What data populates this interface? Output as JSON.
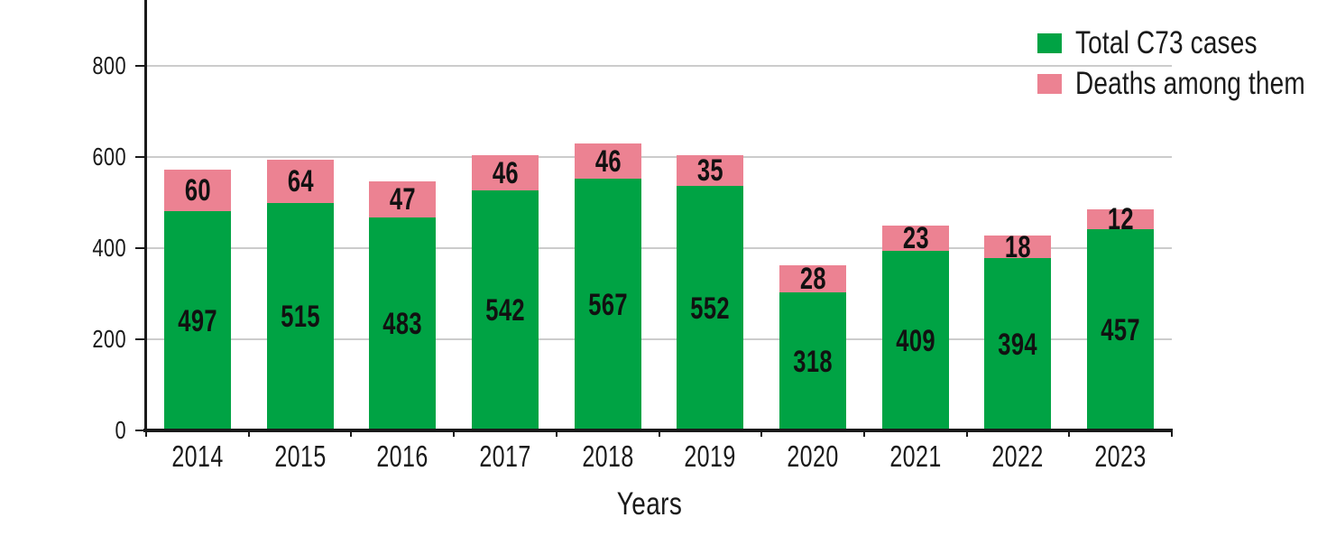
{
  "chart_data": {
    "type": "bar",
    "stacked": true,
    "title": "",
    "xlabel": "Years",
    "ylabel": "",
    "categories": [
      "2014",
      "2015",
      "2016",
      "2017",
      "2018",
      "2019",
      "2020",
      "2021",
      "2022",
      "2023"
    ],
    "series": [
      {
        "name": "Total C73 cases",
        "color": "#00A344",
        "values": [
          497,
          515,
          483,
          542,
          567,
          552,
          318,
          409,
          394,
          457
        ]
      },
      {
        "name": "Deaths among them",
        "color": "#EC8292",
        "values": [
          60,
          64,
          47,
          46,
          46,
          35,
          28,
          23,
          18,
          12
        ]
      }
    ],
    "yticks": [
      0,
      200,
      400,
      600,
      800
    ],
    "ylim": [
      0,
      943
    ],
    "grid": true,
    "legend_position": "top-right-inside",
    "colors": {
      "axis": "#1a1a1a",
      "gridline": "#cccccc",
      "label_text": "#111111"
    }
  }
}
